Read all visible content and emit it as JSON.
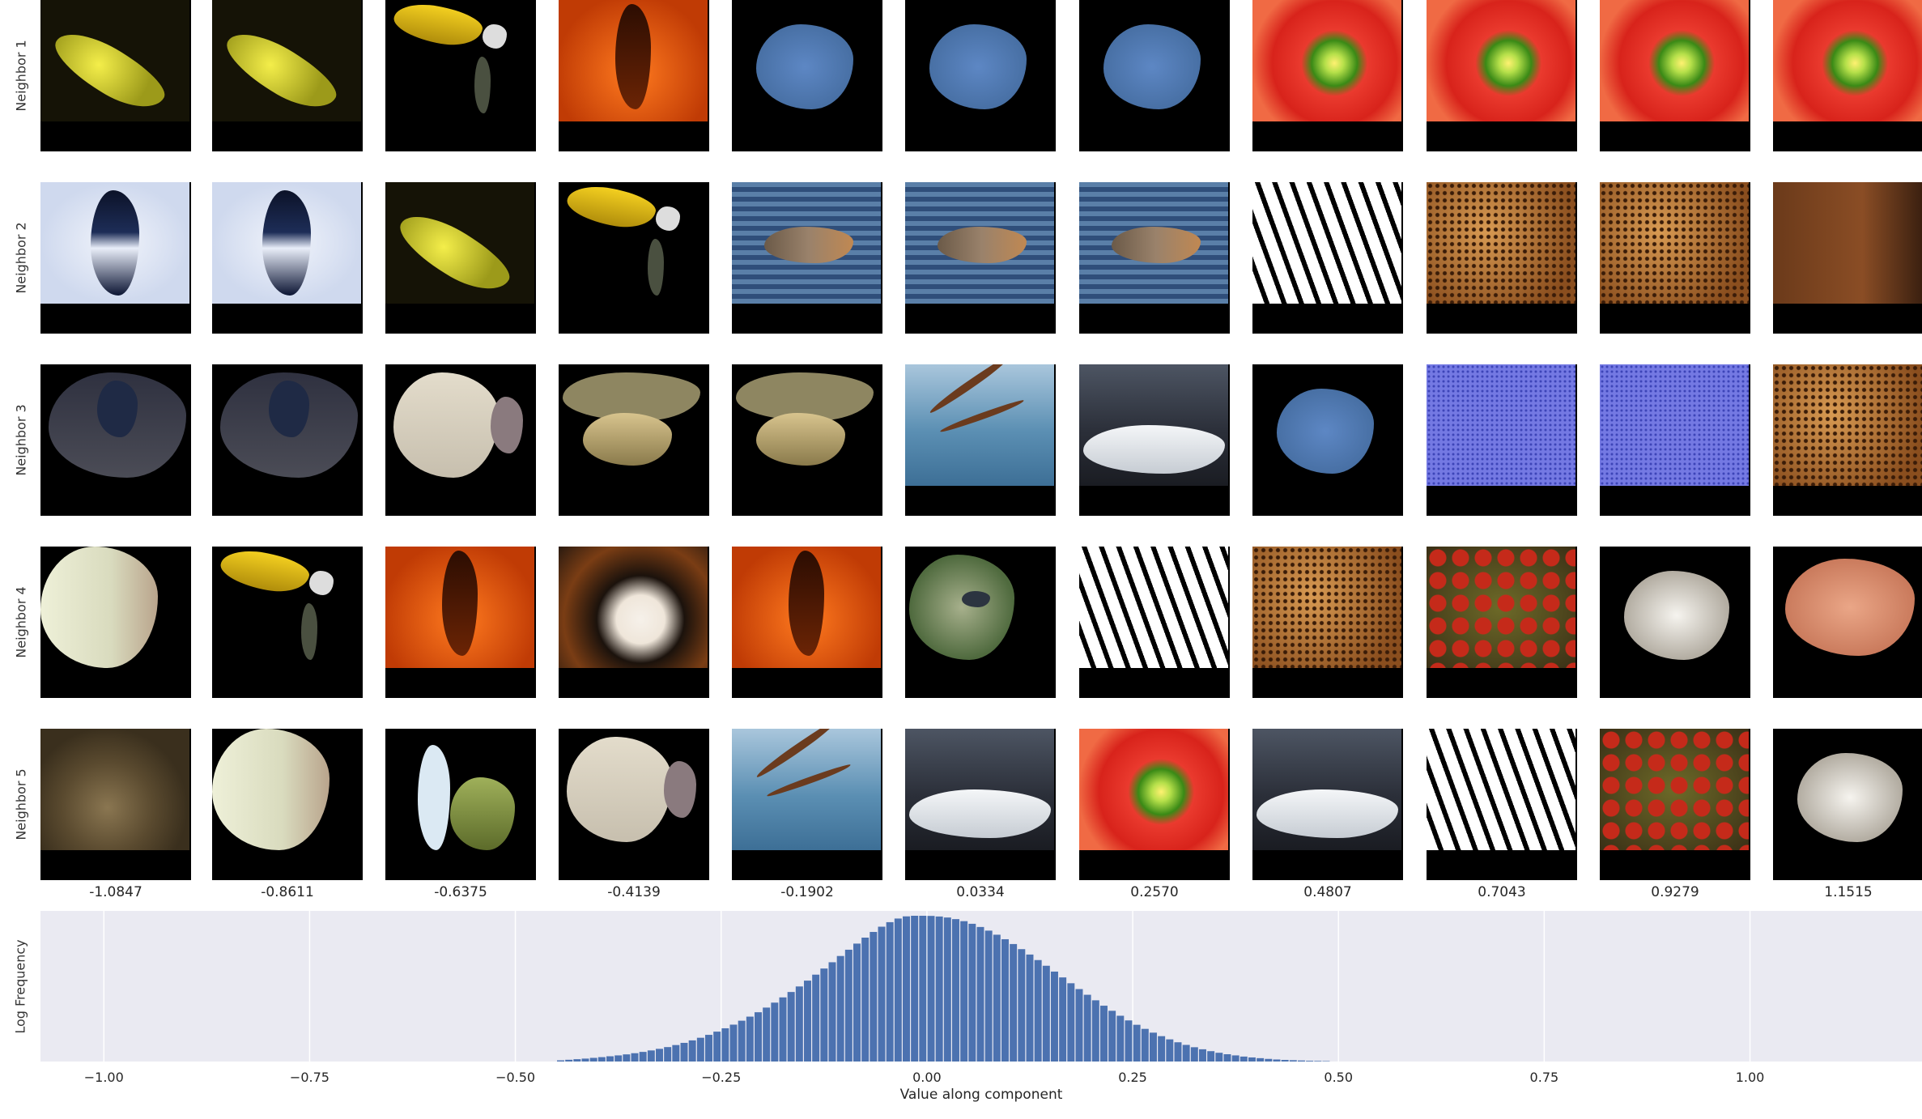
{
  "rows": [
    {
      "label": "Neighbor 1",
      "cells": [
        "yellow-streak",
        "yellow-streak",
        "yellow-cup",
        "orange-tower",
        "blue-blob",
        "blue-blob",
        "blue-blob",
        "red-flower",
        "red-flower",
        "red-flower",
        "red-flower"
      ]
    },
    {
      "label": "Neighbor 2",
      "cells": [
        "hourglass",
        "hourglass",
        "yellow-streak",
        "yellow-cup",
        "duck-water",
        "duck-water",
        "duck-water",
        "bw-lines",
        "leopard-texture",
        "leopard-texture",
        "rust-brown"
      ]
    },
    {
      "label": "Neighbor 3",
      "cells": [
        "dark-room",
        "dark-room",
        "white-blob",
        "tan-rock",
        "tan-rock",
        "branch-water",
        "white-car",
        "blue-blob",
        "purple-texture",
        "purple-texture",
        "leopard-texture"
      ]
    },
    {
      "label": "Neighbor 4",
      "cells": [
        "cream-room",
        "yellow-cup",
        "orange-tower",
        "dog-face",
        "orange-tower",
        "green-bird",
        "bw-lines",
        "leopard-texture",
        "fruit-bowl",
        "white-fur",
        "salmon-blob"
      ]
    },
    {
      "label": "Neighbor 5",
      "cells": [
        "bird-nest",
        "cream-room",
        "blue-green-dark",
        "white-blob",
        "branch-water",
        "white-car",
        "red-flower",
        "white-car",
        "bw-lines",
        "fruit-bowl",
        "white-fur"
      ]
    }
  ],
  "column_values": [
    "-1.0847",
    "-0.8611",
    "-0.6375",
    "-0.4139",
    "-0.1902",
    "0.0334",
    "0.2570",
    "0.4807",
    "0.7043",
    "0.9279",
    "1.1515"
  ],
  "colors": {
    "plot_bg": "#eaeaf2",
    "bar": "#4c72b0",
    "grid": "#ffffff"
  },
  "chart_data": {
    "type": "bar",
    "xlabel": "Value along component",
    "ylabel": "Log Frequency",
    "xlim": [
      -1.077,
      1.209
    ],
    "xticks": [
      -1.0,
      -0.75,
      -0.5,
      -0.25,
      0.0,
      0.25,
      0.5,
      0.75,
      1.0
    ],
    "xtick_labels": [
      "−1.00",
      "−0.75",
      "−0.50",
      "−0.25",
      "0.00",
      "0.25",
      "0.50",
      "0.75",
      "1.00"
    ],
    "ylim": [
      0,
      1
    ],
    "grid": true,
    "bin_width": 0.01,
    "bin_centers": [
      -0.445,
      -0.435,
      -0.425,
      -0.415,
      -0.405,
      -0.395,
      -0.385,
      -0.375,
      -0.365,
      -0.355,
      -0.345,
      -0.335,
      -0.325,
      -0.315,
      -0.305,
      -0.295,
      -0.285,
      -0.275,
      -0.265,
      -0.255,
      -0.245,
      -0.235,
      -0.225,
      -0.215,
      -0.205,
      -0.195,
      -0.185,
      -0.175,
      -0.165,
      -0.155,
      -0.145,
      -0.135,
      -0.125,
      -0.115,
      -0.105,
      -0.095,
      -0.085,
      -0.075,
      -0.065,
      -0.055,
      -0.045,
      -0.035,
      -0.025,
      -0.015,
      -0.005,
      0.005,
      0.015,
      0.025,
      0.035,
      0.045,
      0.055,
      0.065,
      0.075,
      0.085,
      0.095,
      0.105,
      0.115,
      0.125,
      0.135,
      0.145,
      0.155,
      0.165,
      0.175,
      0.185,
      0.195,
      0.205,
      0.215,
      0.225,
      0.235,
      0.245,
      0.255,
      0.265,
      0.275,
      0.285,
      0.295,
      0.305,
      0.315,
      0.325,
      0.335,
      0.345,
      0.355,
      0.365,
      0.375,
      0.385,
      0.395,
      0.405,
      0.415,
      0.425,
      0.435,
      0.445,
      0.455,
      0.465,
      0.475,
      0.485
    ],
    "values": [
      0.008,
      0.012,
      0.016,
      0.02,
      0.025,
      0.03,
      0.036,
      0.042,
      0.049,
      0.057,
      0.066,
      0.076,
      0.087,
      0.099,
      0.113,
      0.128,
      0.145,
      0.163,
      0.183,
      0.205,
      0.228,
      0.253,
      0.28,
      0.308,
      0.338,
      0.37,
      0.404,
      0.44,
      0.477,
      0.515,
      0.555,
      0.596,
      0.638,
      0.681,
      0.724,
      0.767,
      0.809,
      0.85,
      0.889,
      0.925,
      0.956,
      0.981,
      0.996,
      1.0,
      1.0,
      0.999,
      0.995,
      0.988,
      0.977,
      0.963,
      0.945,
      0.923,
      0.898,
      0.87,
      0.839,
      0.806,
      0.771,
      0.734,
      0.696,
      0.657,
      0.617,
      0.577,
      0.537,
      0.497,
      0.458,
      0.42,
      0.383,
      0.348,
      0.314,
      0.282,
      0.252,
      0.224,
      0.198,
      0.174,
      0.152,
      0.132,
      0.114,
      0.098,
      0.084,
      0.071,
      0.06,
      0.05,
      0.042,
      0.034,
      0.028,
      0.023,
      0.018,
      0.014,
      0.011,
      0.009,
      0.007,
      0.005,
      0.004,
      0.003
    ]
  }
}
